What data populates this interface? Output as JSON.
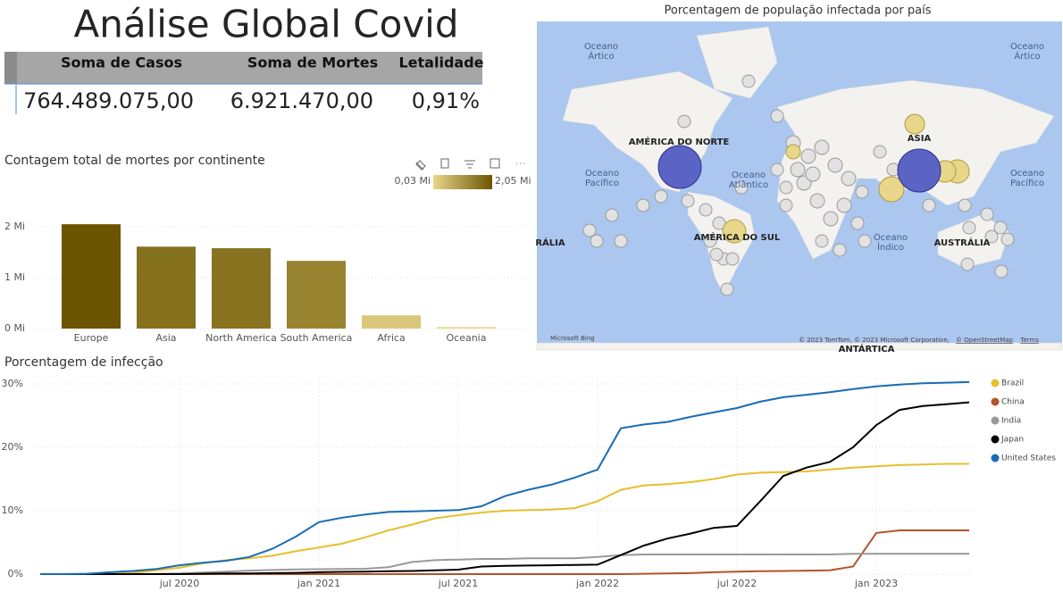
{
  "header": {
    "title": "Análise Global Covid"
  },
  "table": {
    "columns": [
      "Soma de Casos",
      "Soma de Mortes",
      "Letalidade"
    ],
    "rows": [
      [
        "764.489.075,00",
        "6.921.470,00",
        "0,91%"
      ]
    ]
  },
  "map": {
    "title": "Porcentagem de população infectada por país",
    "labels": [
      {
        "lines": [
          "Oceano",
          "Ártico"
        ]
      },
      {
        "lines": [
          "Oceano",
          "Ártico"
        ]
      },
      {
        "lines": [
          "AMÉRICA DO NORTE"
        ]
      },
      {
        "lines": [
          "ASIA"
        ]
      },
      {
        "lines": [
          "Oceano",
          "Pacífico"
        ]
      },
      {
        "lines": [
          "Oceano",
          "Atlântico"
        ]
      },
      {
        "lines": [
          "Oceano",
          "Pacífico"
        ]
      },
      {
        "lines": [
          "AMÉRICA DO SUL"
        ]
      },
      {
        "lines": [
          "Oceano",
          "Índico"
        ]
      },
      {
        "lines": [
          "AUSTRÁLIA"
        ]
      },
      {
        "lines": [
          "RÁLIA"
        ]
      },
      {
        "lines": [
          "ANTÁRTICA"
        ]
      }
    ],
    "credits": [
      "Microsoft Bing",
      "© 2023 TomTom, © 2023 Microsoft Corporation,",
      "© OpenStreetMap",
      "Terms"
    ]
  },
  "chart_data": [
    {
      "type": "bar",
      "title": "Contagem total de mortes por continente",
      "categories": [
        "Europe",
        "Asia",
        "North America",
        "South America",
        "Africa",
        "Oceania"
      ],
      "values": [
        2.05,
        1.61,
        1.58,
        1.33,
        0.26,
        0.03
      ],
      "color_scale": {
        "min": {
          "value": 0.03,
          "label": "0,03 Mi"
        },
        "max": {
          "value": 2.05,
          "label": "2,05 Mi"
        },
        "colors": [
          "#e8d68a",
          "#6b5500"
        ]
      },
      "ylim": [
        0,
        2.2
      ],
      "yticks": [
        {
          "value": 0,
          "label": "0 Mi"
        },
        {
          "value": 1,
          "label": "1 Mi"
        },
        {
          "value": 2,
          "label": "2 Mi"
        }
      ],
      "grid": true
    },
    {
      "type": "line",
      "title": "Porcentagem de infecção",
      "x": [
        "2020-01",
        "2020-02",
        "2020-03",
        "2020-04",
        "2020-05",
        "2020-06",
        "2020-07",
        "2020-08",
        "2020-09",
        "2020-10",
        "2020-11",
        "2020-12",
        "2021-01",
        "2021-02",
        "2021-03",
        "2021-04",
        "2021-05",
        "2021-06",
        "2021-07",
        "2021-08",
        "2021-09",
        "2021-10",
        "2021-11",
        "2021-12",
        "2022-01",
        "2022-02",
        "2022-03",
        "2022-04",
        "2022-05",
        "2022-06",
        "2022-07",
        "2022-08",
        "2022-09",
        "2022-10",
        "2022-11",
        "2022-12",
        "2023-01",
        "2023-02",
        "2023-03",
        "2023-04",
        "2023-05"
      ],
      "series": [
        {
          "name": "Brazil",
          "color": "#e6bf2e",
          "values": [
            0,
            0,
            0,
            0.05,
            0.2,
            0.6,
            1.0,
            1.7,
            2.2,
            2.5,
            2.9,
            3.6,
            4.2,
            4.8,
            5.8,
            6.9,
            7.8,
            8.8,
            9.3,
            9.7,
            10.0,
            10.1,
            10.2,
            10.4,
            11.5,
            13.3,
            14.0,
            14.2,
            14.5,
            15.0,
            15.7,
            16.0,
            16.1,
            16.2,
            16.5,
            16.8,
            17.0,
            17.2,
            17.3,
            17.4,
            17.4
          ]
        },
        {
          "name": "China",
          "color": "#b5532c",
          "values": [
            0,
            0,
            0,
            0,
            0,
            0,
            0,
            0,
            0,
            0,
            0,
            0,
            0,
            0,
            0,
            0,
            0,
            0,
            0,
            0,
            0,
            0,
            0,
            0,
            0,
            0,
            0.05,
            0.1,
            0.15,
            0.3,
            0.4,
            0.45,
            0.5,
            0.55,
            0.6,
            1.2,
            6.5,
            6.9,
            6.9,
            6.9,
            6.9
          ]
        },
        {
          "name": "India",
          "color": "#999999",
          "values": [
            0,
            0,
            0,
            0,
            0,
            0.03,
            0.1,
            0.25,
            0.4,
            0.55,
            0.65,
            0.75,
            0.78,
            0.8,
            0.85,
            1.1,
            1.9,
            2.2,
            2.3,
            2.4,
            2.4,
            2.5,
            2.5,
            2.5,
            2.7,
            3.0,
            3.1,
            3.1,
            3.1,
            3.1,
            3.1,
            3.1,
            3.1,
            3.1,
            3.1,
            3.2,
            3.2,
            3.2,
            3.2,
            3.2,
            3.2
          ]
        },
        {
          "name": "Japan",
          "color": "#000000",
          "values": [
            0,
            0,
            0,
            0,
            0,
            0,
            0,
            0.05,
            0.1,
            0.1,
            0.15,
            0.2,
            0.3,
            0.35,
            0.4,
            0.45,
            0.5,
            0.6,
            0.7,
            1.2,
            1.3,
            1.35,
            1.4,
            1.45,
            1.5,
            3.0,
            4.5,
            5.6,
            6.4,
            7.3,
            7.6,
            11.5,
            15.5,
            16.8,
            17.7,
            20.0,
            23.5,
            25.9,
            26.5,
            26.8,
            27.1
          ]
        },
        {
          "name": "United States",
          "color": "#1a6bb5",
          "values": [
            0,
            0,
            0.05,
            0.3,
            0.5,
            0.8,
            1.4,
            1.8,
            2.1,
            2.7,
            4.0,
            5.9,
            8.2,
            8.9,
            9.4,
            9.8,
            9.9,
            10.0,
            10.1,
            10.7,
            12.3,
            13.3,
            14.1,
            15.2,
            16.5,
            23.0,
            23.6,
            24.0,
            24.8,
            25.5,
            26.2,
            27.2,
            27.9,
            28.3,
            28.7,
            29.2,
            29.6,
            29.9,
            30.1,
            30.2,
            30.3
          ]
        }
      ],
      "xlim": [
        "2020-01",
        "2023-05"
      ],
      "xticks": [
        {
          "value": "2020-07",
          "label": "jul 2020"
        },
        {
          "value": "2021-01",
          "label": "jan 2021"
        },
        {
          "value": "2021-07",
          "label": "jul 2021"
        },
        {
          "value": "2022-01",
          "label": "jan 2022"
        },
        {
          "value": "2022-07",
          "label": "jul 2022"
        },
        {
          "value": "2023-01",
          "label": "jan 2023"
        }
      ],
      "ylim": [
        0,
        31
      ],
      "yticks": [
        {
          "value": 0,
          "label": "0%"
        },
        {
          "value": 10,
          "label": "10%"
        },
        {
          "value": 20,
          "label": "20%"
        },
        {
          "value": 30,
          "label": "30%"
        }
      ],
      "grid": true
    }
  ]
}
